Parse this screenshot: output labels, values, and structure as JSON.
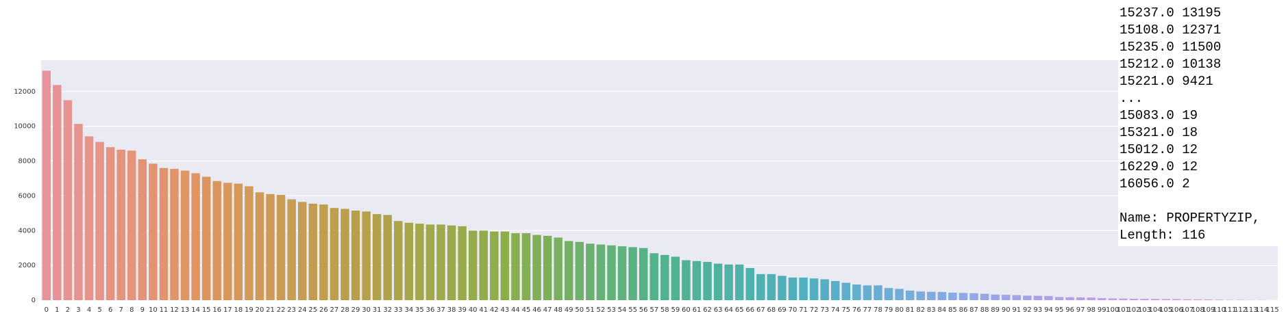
{
  "chart_data": {
    "type": "bar",
    "categories": [
      0,
      1,
      2,
      3,
      4,
      5,
      6,
      7,
      8,
      9,
      10,
      11,
      12,
      13,
      14,
      15,
      16,
      17,
      18,
      19,
      20,
      21,
      22,
      23,
      24,
      25,
      26,
      27,
      28,
      29,
      30,
      31,
      32,
      33,
      34,
      35,
      36,
      37,
      38,
      39,
      40,
      41,
      42,
      43,
      44,
      45,
      46,
      47,
      48,
      49,
      50,
      51,
      52,
      53,
      54,
      55,
      56,
      57,
      58,
      59,
      60,
      61,
      62,
      63,
      64,
      65,
      66,
      67,
      68,
      69,
      70,
      71,
      72,
      73,
      74,
      75,
      76,
      77,
      78,
      79,
      80,
      81,
      82,
      83,
      84,
      85,
      86,
      87,
      88,
      89,
      90,
      91,
      92,
      93,
      94,
      95,
      96,
      97,
      98,
      99,
      100,
      101,
      102,
      103,
      104,
      105,
      106,
      107,
      108,
      109,
      110,
      111,
      112,
      113,
      114,
      115
    ],
    "values": [
      13195,
      12371,
      11500,
      10138,
      9421,
      9100,
      8800,
      8650,
      8600,
      8100,
      7850,
      7600,
      7550,
      7450,
      7300,
      7100,
      6850,
      6750,
      6700,
      6550,
      6200,
      6100,
      6050,
      5800,
      5650,
      5550,
      5500,
      5300,
      5250,
      5150,
      5100,
      4950,
      4900,
      4550,
      4450,
      4400,
      4350,
      4350,
      4300,
      4250,
      4000,
      4000,
      3950,
      3950,
      3850,
      3850,
      3750,
      3700,
      3600,
      3400,
      3350,
      3250,
      3200,
      3150,
      3100,
      3050,
      3000,
      2700,
      2600,
      2500,
      2300,
      2250,
      2200,
      2100,
      2050,
      2050,
      1850,
      1500,
      1500,
      1400,
      1300,
      1300,
      1250,
      1200,
      1100,
      1000,
      900,
      850,
      850,
      700,
      650,
      550,
      500,
      480,
      470,
      430,
      420,
      400,
      370,
      320,
      310,
      290,
      260,
      250,
      240,
      180,
      170,
      160,
      150,
      120,
      100,
      90,
      80,
      75,
      70,
      65,
      60,
      50,
      45,
      40,
      30,
      19,
      18,
      12,
      12,
      2
    ],
    "color_stops": [
      "#e8939a",
      "#e0955e",
      "#b8a04a",
      "#8cae4a",
      "#4fb38c",
      "#4fb0c2",
      "#8fa9e8",
      "#c89ae8",
      "#e891d4"
    ],
    "ylim": [
      0,
      13800
    ],
    "yticks": [
      0,
      2000,
      4000,
      6000,
      8000,
      10000,
      12000
    ],
    "grid": true,
    "background": "#eaeaf2"
  },
  "output_text": {
    "head": [
      "15237.0 13195",
      "15108.0 12371",
      "15235.0 11500",
      "15212.0 10138",
      "15221.0 9421",
      "..."
    ],
    "tail": [
      "15083.0 19",
      "15321.0 18",
      "15012.0 12",
      "16229.0 12",
      "16056.0 2"
    ],
    "footer": [
      "Name: PROPERTYZIP,",
      "Length: 116"
    ]
  }
}
